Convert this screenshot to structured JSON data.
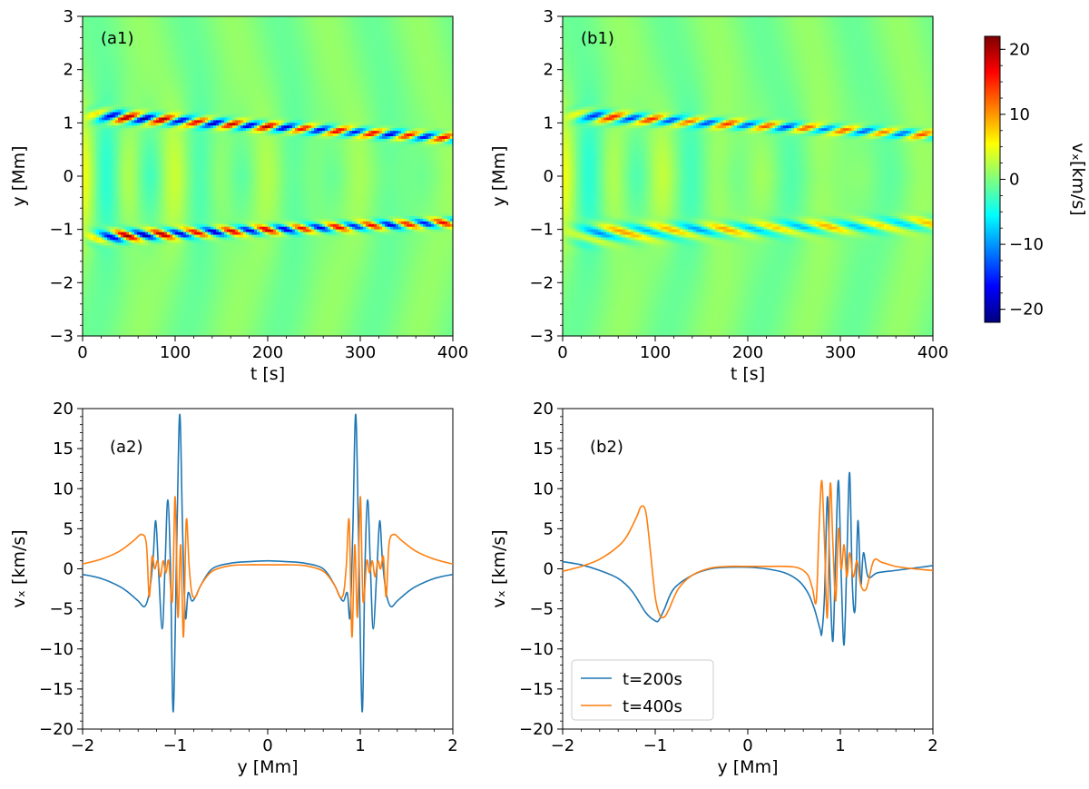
{
  "colors": {
    "series1": "#1f77b4",
    "series2": "#ff7f0e",
    "cmap_stops": [
      "#00007f",
      "#0000ff",
      "#007fff",
      "#00ffff",
      "#7fff7f",
      "#ffff00",
      "#ff7f00",
      "#ff0000",
      "#7f0000"
    ]
  },
  "chart_data": [
    {
      "id": "a1",
      "type": "heatmap",
      "panel_label": "(a1)",
      "title": "",
      "xlabel": "t [s]",
      "ylabel": "y [Mm]",
      "xlim": [
        0,
        400
      ],
      "ylim": [
        -3,
        3
      ],
      "xticks": [
        0,
        100,
        200,
        300,
        400
      ],
      "yticks": [
        -3,
        -2,
        -1,
        0,
        1,
        2,
        3
      ],
      "xtick_labels": [
        "0",
        "100",
        "200",
        "300",
        "400"
      ],
      "ytick_labels": [
        "−3",
        "−2",
        "−1",
        "0",
        "1",
        "2",
        "3"
      ],
      "show_xlabel": true,
      "field": {
        "variable": "vx",
        "units": "km/s",
        "background": 1,
        "bands": [
          {
            "y0": 1.15,
            "slope": -0.0011,
            "amplitude": 22,
            "period": 38,
            "width": 0.09
          },
          {
            "y0": -1.15,
            "slope": 0.0007,
            "amplitude": 22,
            "period": 38,
            "width": 0.09
          }
        ],
        "center_wave": {
          "amplitude": 4,
          "period": 50
        }
      }
    },
    {
      "id": "b1",
      "type": "heatmap",
      "panel_label": "(b1)",
      "title": "",
      "xlabel": "t [s]",
      "ylabel": "y [Mm]",
      "xlim": [
        0,
        400
      ],
      "ylim": [
        -3,
        3
      ],
      "xticks": [
        0,
        100,
        200,
        300,
        400
      ],
      "yticks": [
        -3,
        -2,
        -1,
        0,
        1,
        2,
        3
      ],
      "xtick_labels": [
        "0",
        "100",
        "200",
        "300",
        "400"
      ],
      "ytick_labels": [
        "−3",
        "−2",
        "−1",
        "0",
        "1",
        "2",
        "3"
      ],
      "show_xlabel": true,
      "field": {
        "variable": "vx",
        "units": "km/s",
        "background": 1,
        "bands": [
          {
            "y0": 1.15,
            "slope": -0.00095,
            "amplitude": 16,
            "period": 42,
            "width": 0.09
          },
          {
            "y0": -1.1,
            "slope": 0.0005,
            "amplitude": 10,
            "period": 55,
            "width": 0.14
          }
        ],
        "center_wave": {
          "amplitude": 4,
          "period": 55
        }
      }
    },
    {
      "id": "a2",
      "type": "line",
      "panel_label": "(a2)",
      "title": "",
      "xlabel": "y [Mm]",
      "ylabel": "vₓ [km/s]",
      "xlim": [
        -2,
        2
      ],
      "ylim": [
        -20,
        20
      ],
      "xticks": [
        -2,
        -1,
        0,
        1,
        2
      ],
      "yticks": [
        -20,
        -15,
        -10,
        -5,
        0,
        5,
        10,
        15,
        20
      ],
      "xtick_labels": [
        "−2",
        "−1",
        "0",
        "1",
        "2"
      ],
      "ytick_labels": [
        "−20",
        "−15",
        "−10",
        "−5",
        "0",
        "5",
        "10",
        "15",
        "20"
      ],
      "legend": null,
      "series": [
        {
          "name": "t=200s",
          "x": [
            -2,
            -1.8,
            -1.6,
            -1.5,
            -1.4,
            -1.33,
            -1.28,
            -1.24,
            -1.21,
            -1.18,
            -1.14,
            -1.11,
            -1.08,
            -1.05,
            -1.02,
            -0.98,
            -0.95,
            -0.92,
            -0.89,
            -0.86,
            -0.82,
            -0.78,
            -0.72,
            -0.6,
            -0.4,
            -0.2,
            0,
            0.2,
            0.4,
            0.6,
            0.72,
            0.78,
            0.82,
            0.86,
            0.89,
            0.92,
            0.95,
            0.98,
            1.02,
            1.05,
            1.08,
            1.11,
            1.14,
            1.18,
            1.21,
            1.24,
            1.28,
            1.33,
            1.4,
            1.5,
            1.6,
            1.8,
            2
          ],
          "y": [
            -0.7,
            -1.2,
            -2.2,
            -3.0,
            -4.0,
            -4.7,
            -3.0,
            1.0,
            6.0,
            0.0,
            -7.5,
            0.0,
            8.6,
            0.0,
            -17.8,
            5.0,
            19.3,
            5.0,
            -6.0,
            -3.0,
            -4.0,
            -3.5,
            -2.0,
            0.0,
            0.7,
            0.9,
            1.0,
            0.9,
            0.7,
            0.0,
            -2.0,
            -3.5,
            -4.0,
            -3.0,
            -6.0,
            5.0,
            19.3,
            5.0,
            -17.8,
            0.0,
            8.6,
            0.0,
            -7.5,
            0.0,
            6.0,
            1.0,
            -3.0,
            -4.7,
            -4.0,
            -3.0,
            -2.2,
            -1.2,
            -0.7
          ]
        },
        {
          "name": "t=400s",
          "x": [
            -2,
            -1.8,
            -1.6,
            -1.45,
            -1.36,
            -1.31,
            -1.28,
            -1.25,
            -1.22,
            -1.19,
            -1.16,
            -1.13,
            -1.1,
            -1.07,
            -1.03,
            -1.0,
            -0.97,
            -0.94,
            -0.91,
            -0.88,
            -0.85,
            -0.82,
            -0.78,
            -0.72,
            -0.6,
            -0.4,
            -0.2,
            0,
            0.2,
            0.4,
            0.6,
            0.72,
            0.78,
            0.82,
            0.85,
            0.88,
            0.91,
            0.94,
            0.97,
            1.0,
            1.03,
            1.07,
            1.1,
            1.13,
            1.16,
            1.19,
            1.22,
            1.25,
            1.28,
            1.31,
            1.36,
            1.45,
            1.6,
            1.8,
            2
          ],
          "y": [
            0.6,
            1.2,
            2.2,
            3.5,
            4.3,
            3.0,
            -3.5,
            1.5,
            0.0,
            1.0,
            -1.0,
            1.0,
            -0.5,
            1.0,
            -4.0,
            9.0,
            -6.0,
            3.0,
            -8.5,
            6.0,
            0.5,
            -3.0,
            -3.5,
            -2.0,
            -0.3,
            0.4,
            0.5,
            0.5,
            0.5,
            0.4,
            -0.3,
            -2.0,
            -3.5,
            -3.0,
            0.5,
            6.0,
            -8.5,
            3.0,
            -6.0,
            9.0,
            -4.0,
            1.0,
            -0.5,
            1.0,
            -1.0,
            1.0,
            0.0,
            1.5,
            -3.5,
            3.0,
            4.3,
            3.5,
            2.2,
            1.2,
            0.6
          ]
        }
      ]
    },
    {
      "id": "b2",
      "type": "line",
      "panel_label": "(b2)",
      "title": "",
      "xlabel": "y [Mm]",
      "ylabel": "vₓ [km/s]",
      "xlim": [
        -2,
        2
      ],
      "ylim": [
        -20,
        20
      ],
      "xticks": [
        -2,
        -1,
        0,
        1,
        2
      ],
      "yticks": [
        -20,
        -15,
        -10,
        -5,
        0,
        5,
        10,
        15,
        20
      ],
      "xtick_labels": [
        "−2",
        "−1",
        "0",
        "1",
        "2"
      ],
      "ytick_labels": [
        "−20",
        "−15",
        "−10",
        "−5",
        "0",
        "5",
        "10",
        "15",
        "20"
      ],
      "legend": {
        "position": "lower-left",
        "entries": [
          "t=200s",
          "t=400s"
        ]
      },
      "series": [
        {
          "name": "t=200s",
          "x": [
            -2,
            -1.8,
            -1.6,
            -1.4,
            -1.25,
            -1.1,
            -1.0,
            -0.96,
            -0.9,
            -0.8,
            -0.6,
            -0.4,
            -0.2,
            0,
            0.2,
            0.4,
            0.55,
            0.65,
            0.72,
            0.78,
            0.8,
            0.83,
            0.86,
            0.89,
            0.92,
            0.95,
            0.98,
            1.01,
            1.04,
            1.07,
            1.1,
            1.13,
            1.16,
            1.19,
            1.22,
            1.25,
            1.3,
            1.4,
            1.6,
            1.8,
            2
          ],
          "y": [
            0.9,
            0.5,
            -0.2,
            -1.2,
            -2.8,
            -5.5,
            -6.5,
            -6.4,
            -5.0,
            -2.5,
            -0.8,
            0.0,
            0.2,
            0.2,
            0.0,
            -0.5,
            -1.5,
            -3.0,
            -5.0,
            -7.5,
            -8.0,
            -3.0,
            9.0,
            -2.0,
            -9.0,
            2.0,
            11.0,
            -1.0,
            -9.5,
            1.0,
            12.0,
            -2.0,
            -5.0,
            6.0,
            -2.0,
            2.0,
            -1.0,
            -0.5,
            -0.2,
            0.1,
            0.4
          ]
        },
        {
          "name": "t=400s",
          "x": [
            -2,
            -1.8,
            -1.6,
            -1.4,
            -1.3,
            -1.2,
            -1.15,
            -1.1,
            -1.05,
            -1.0,
            -0.95,
            -0.9,
            -0.85,
            -0.75,
            -0.6,
            -0.4,
            -0.2,
            0,
            0.2,
            0.4,
            0.55,
            0.65,
            0.7,
            0.74,
            0.77,
            0.8,
            0.83,
            0.86,
            0.89,
            0.92,
            0.95,
            0.98,
            1.01,
            1.04,
            1.07,
            1.1,
            1.14,
            1.18,
            1.22,
            1.28,
            1.36,
            1.45,
            1.6,
            1.8,
            2
          ],
          "y": [
            -0.3,
            0.3,
            1.2,
            2.8,
            4.2,
            6.5,
            7.8,
            7.0,
            2.0,
            -3.5,
            -5.8,
            -6.0,
            -5.0,
            -2.5,
            -0.8,
            0.1,
            0.3,
            0.3,
            0.3,
            0.3,
            0.1,
            -0.8,
            -2.5,
            -4.0,
            5.0,
            11.0,
            3.0,
            -6.0,
            10.5,
            3.0,
            -4.0,
            5.0,
            0.0,
            3.0,
            -1.0,
            2.0,
            -1.0,
            1.0,
            -2.0,
            -2.5,
            1.0,
            0.8,
            0.3,
            0.0,
            -0.2
          ]
        }
      ]
    },
    {
      "id": "colorbar",
      "type": "colorbar",
      "label": "vₓ[km/s]",
      "vmin": -22,
      "vmax": 22,
      "ticks": [
        -20,
        -10,
        0,
        10,
        20
      ],
      "tick_labels": [
        "−20",
        "−10",
        "0",
        "10",
        "20"
      ]
    }
  ]
}
